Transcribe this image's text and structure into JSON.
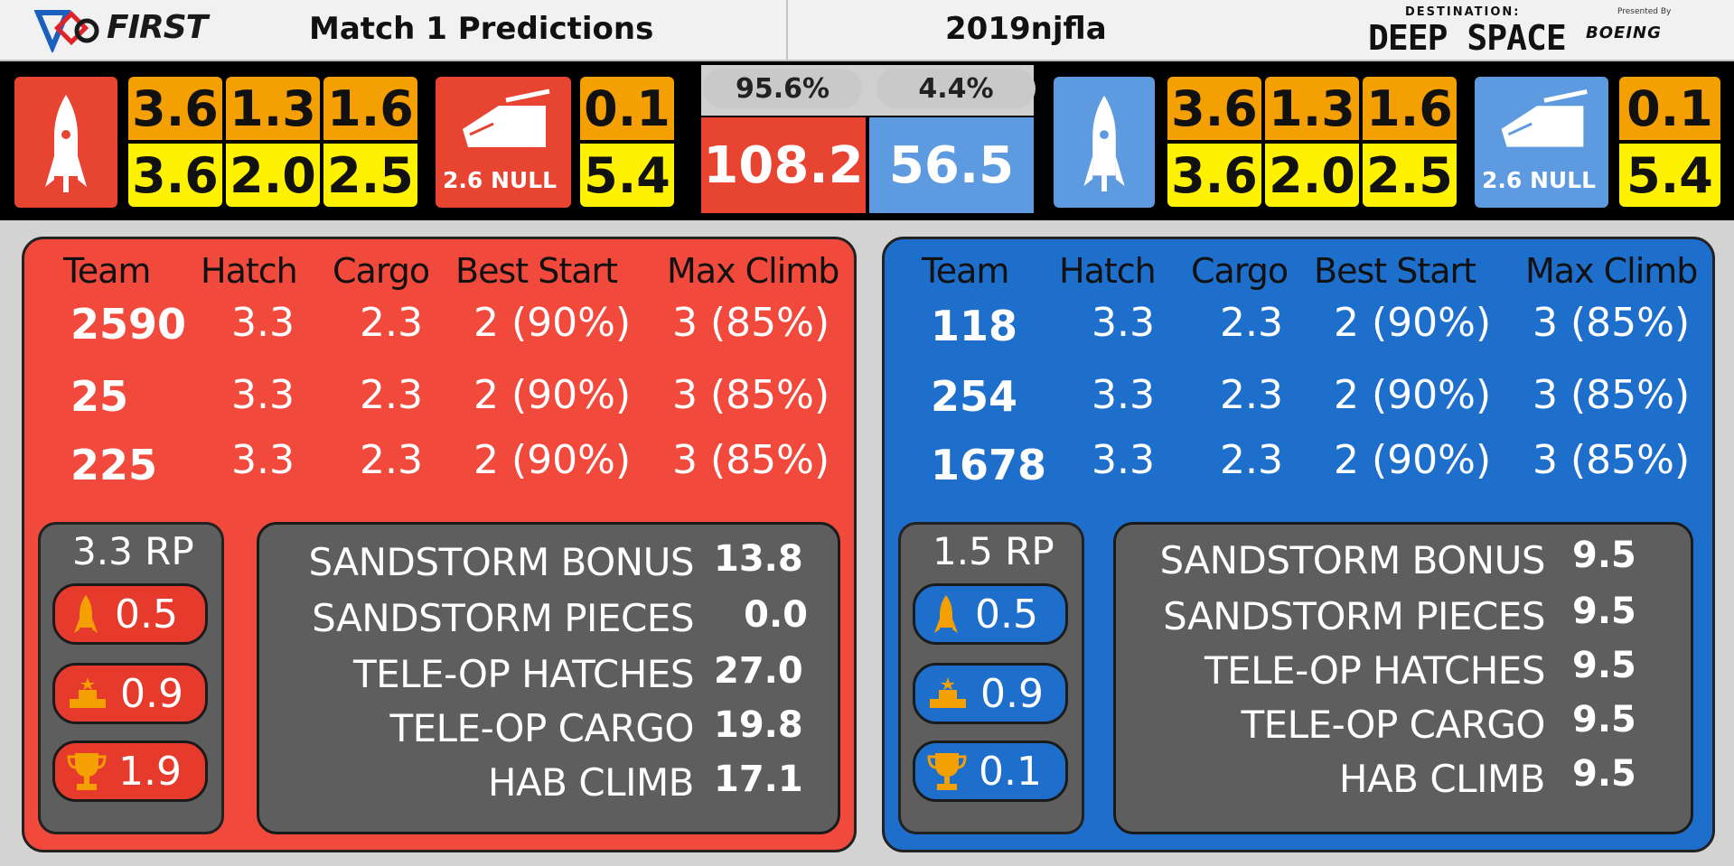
{
  "header": {
    "first_logo": "FIRST",
    "title": "Match 1 Predictions",
    "event": "2019njfla",
    "game_small": "DESTINATION:",
    "game_big": "DEEP SPACE",
    "presented_by": "Presented By",
    "sponsor": "BOEING"
  },
  "scorebar": {
    "red": {
      "top_values": [
        "3.6",
        "1.3",
        "1.6"
      ],
      "bottom_values": [
        "3.6",
        "2.0",
        "2.5"
      ],
      "hab_label": "2.6 NULL",
      "hab_top": "0.1",
      "hab_bottom": "5.4"
    },
    "blue": {
      "top_values": [
        "3.6",
        "1.3",
        "1.6"
      ],
      "bottom_values": [
        "3.6",
        "2.0",
        "2.5"
      ],
      "hab_label": "2.6 NULL",
      "hab_top": "0.1",
      "hab_bottom": "5.4"
    },
    "red_win_prob": "95.6%",
    "blue_win_prob": "4.4%",
    "red_score": "108.2",
    "blue_score": "56.5"
  },
  "table_headers": [
    "Team",
    "Hatch",
    "Cargo",
    "Best Start",
    "Max Climb"
  ],
  "red": {
    "teams": [
      {
        "team": "2590",
        "hatch": "3.3",
        "cargo": "2.3",
        "start": "2 (90%)",
        "climb": "3 (85%)"
      },
      {
        "team": "25",
        "hatch": "3.3",
        "cargo": "2.3",
        "start": "2 (90%)",
        "climb": "3 (85%)"
      },
      {
        "team": "225",
        "hatch": "3.3",
        "cargo": "2.3",
        "start": "2 (90%)",
        "climb": "3 (85%)"
      }
    ],
    "rp_total": "3.3 RP",
    "rp_rocket": "0.5",
    "rp_hab": "0.9",
    "rp_win": "1.9",
    "stats": [
      {
        "label": "SANDSTORM BONUS",
        "value": "13.8"
      },
      {
        "label": "SANDSTORM PIECES",
        "value": "0.0"
      },
      {
        "label": "TELE-OP HATCHES",
        "value": "27.0"
      },
      {
        "label": "TELE-OP CARGO",
        "value": "19.8"
      },
      {
        "label": "HAB CLIMB",
        "value": "17.1"
      }
    ]
  },
  "blue": {
    "teams": [
      {
        "team": "118",
        "hatch": "3.3",
        "cargo": "2.3",
        "start": "2 (90%)",
        "climb": "3 (85%)"
      },
      {
        "team": "254",
        "hatch": "3.3",
        "cargo": "2.3",
        "start": "2 (90%)",
        "climb": "3 (85%)"
      },
      {
        "team": "1678",
        "hatch": "3.3",
        "cargo": "2.3",
        "start": "2 (90%)",
        "climb": "3 (85%)"
      }
    ],
    "rp_total": "1.5 RP",
    "rp_rocket": "0.5",
    "rp_hab": "0.9",
    "rp_win": "0.1",
    "stats": [
      {
        "label": "SANDSTORM BONUS",
        "value": "9.5"
      },
      {
        "label": "SANDSTORM PIECES",
        "value": "9.5"
      },
      {
        "label": "TELE-OP HATCHES",
        "value": "9.5"
      },
      {
        "label": "TELE-OP CARGO",
        "value": "9.5"
      },
      {
        "label": "HAB CLIMB",
        "value": "9.5"
      }
    ]
  },
  "colors": {
    "red_alliance": "#f14a3d",
    "blue_alliance": "#1e6fcc",
    "orange": "#f5a002",
    "yellow": "#fff200",
    "stat_box": "#5e5e5e"
  },
  "icons": {
    "rocket": "rocket-icon",
    "hab": "hab-platform-icon",
    "trophy": "trophy-icon"
  }
}
